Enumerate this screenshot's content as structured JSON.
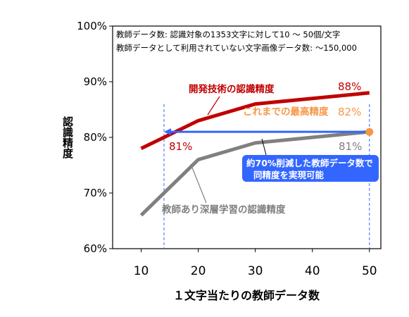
{
  "chart_data": {
    "type": "line",
    "x": [
      10,
      20,
      30,
      40,
      50
    ],
    "xlim": [
      5,
      52
    ],
    "ylim": [
      60,
      100
    ],
    "yticks": [
      "60%",
      "70%",
      "80%",
      "90%",
      "100%"
    ],
    "xticks": [
      "10",
      "20",
      "30",
      "40",
      "50"
    ],
    "xlabel": "１文字当たりの教師データ数",
    "ylabel": "認識精度",
    "grid": false,
    "notes": [
      "教師データ数: 認識対象の1353文字に対して10 〜 50個/文字",
      "教師データとして利用されていない文字画像データ数: 〜150,000"
    ],
    "series": [
      {
        "name": "開発技術の認識精度",
        "color": "#c00000",
        "points": [
          [
            10,
            78
          ],
          [
            14,
            80
          ],
          [
            20,
            83
          ],
          [
            30,
            86
          ],
          [
            40,
            87
          ],
          [
            50,
            88
          ]
        ],
        "end_label": "88%",
        "start_label": "81%"
      },
      {
        "name": "教師あり深層学習の認識精度",
        "color": "#808080",
        "points": [
          [
            10,
            66
          ],
          [
            15,
            71
          ],
          [
            20,
            76
          ],
          [
            30,
            79
          ],
          [
            40,
            80
          ],
          [
            50,
            81
          ]
        ],
        "end_label": "81%"
      }
    ],
    "previous_best": {
      "label": "これまでの最高精度",
      "value_label": "82%",
      "x": 50,
      "y": 82,
      "color": "#f79646"
    },
    "reduction_arrow": {
      "from_x": 50,
      "to_x": 14,
      "y": 81,
      "color": "#3366ff"
    },
    "guide_lines_x": [
      14,
      50
    ],
    "callout": {
      "line1": "約70%削減した教師データ数で",
      "line2": "同精度を実現可能",
      "color": "#3366ff"
    }
  }
}
